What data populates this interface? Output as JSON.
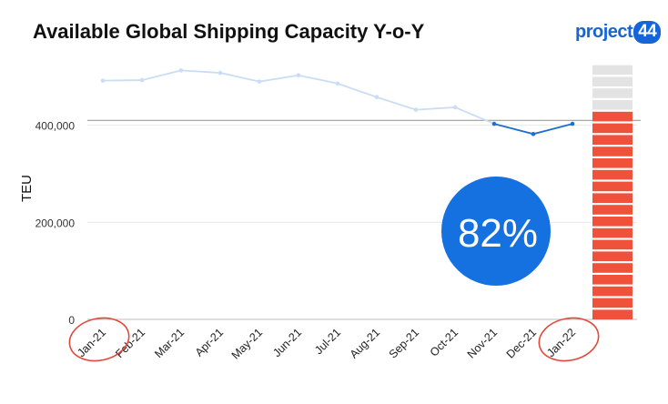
{
  "header": {
    "title": "Available Global Shipping Capacity Y-o-Y",
    "logo_text": "project",
    "logo_badge": "44"
  },
  "chart_data": {
    "type": "line",
    "title": "Available Global Shipping Capacity Y-o-Y",
    "ylabel": "TEU",
    "xlabel": "",
    "categories": [
      "Jan-21",
      "Feb-21",
      "Mar-21",
      "Apr-21",
      "May-21",
      "Jun-21",
      "Jul-21",
      "Aug-21",
      "Sep-21",
      "Oct-21",
      "Nov-21",
      "Dec-21",
      "Jan-22"
    ],
    "values": [
      492000,
      493000,
      513000,
      508000,
      490000,
      503000,
      486000,
      458000,
      432000,
      437000,
      403000,
      382000,
      403000
    ],
    "highlight_from_index": 10,
    "ylim": [
      0,
      540000
    ],
    "yticks": [
      0,
      200000,
      400000
    ],
    "ytick_labels": [
      "0",
      "200,000",
      "400,000"
    ],
    "reference_line": 410000,
    "circled_labels": [
      "Jan-21",
      "Jan-22"
    ],
    "callout": "82%",
    "capacity_bar": {
      "filled_fraction": 0.82
    },
    "colors": {
      "line_faded": "#c9ddf5",
      "line_active": "#1f6fd1",
      "callout_fill": "#1570e0",
      "bar_filled": "#f0513a",
      "bar_empty": "#e3e3e3",
      "annotation": "#e04a3a",
      "gridline": "#e8e8e8"
    }
  }
}
